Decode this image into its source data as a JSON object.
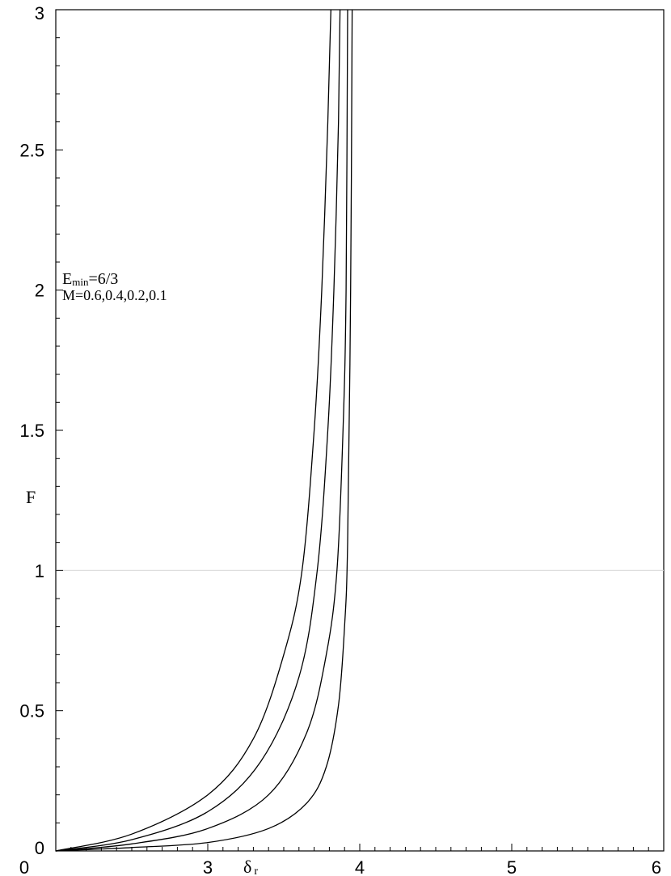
{
  "chart_data": {
    "type": "line",
    "xlabel": "δ",
    "xlabel_subscript": "r",
    "ylabel": "F",
    "xlim": [
      2,
      6
    ],
    "ylim": [
      0,
      3
    ],
    "x_ticks": [
      "3",
      "4",
      "5",
      "6"
    ],
    "y_ticks": [
      "0",
      "0.5",
      "1",
      "1.5",
      "2",
      "2.5",
      "3"
    ],
    "reference_line_y": 1,
    "annotation": {
      "line1_main": "E",
      "line1_sub": "min",
      "line1_rest": "=6/3",
      "line2": "M=0.6,0.4,0.2,0.1"
    },
    "series": [
      {
        "points": [
          [
            2.0,
            0
          ],
          [
            2.5,
            0.06
          ],
          [
            3.0,
            0.2
          ],
          [
            3.3,
            0.4
          ],
          [
            3.5,
            0.7
          ],
          [
            3.62,
            1.0
          ],
          [
            3.7,
            1.5
          ],
          [
            3.75,
            2.0
          ],
          [
            3.79,
            2.6
          ],
          [
            3.81,
            3.0
          ]
        ]
      },
      {
        "points": [
          [
            2.0,
            0
          ],
          [
            2.5,
            0.04
          ],
          [
            3.0,
            0.14
          ],
          [
            3.35,
            0.32
          ],
          [
            3.6,
            0.62
          ],
          [
            3.72,
            1.0
          ],
          [
            3.79,
            1.5
          ],
          [
            3.83,
            2.0
          ],
          [
            3.86,
            2.6
          ],
          [
            3.87,
            3.0
          ]
        ]
      },
      {
        "points": [
          [
            2.0,
            0
          ],
          [
            2.5,
            0.025
          ],
          [
            3.0,
            0.08
          ],
          [
            3.4,
            0.2
          ],
          [
            3.65,
            0.42
          ],
          [
            3.78,
            0.7
          ],
          [
            3.85,
            1.0
          ],
          [
            3.89,
            1.5
          ],
          [
            3.91,
            2.0
          ],
          [
            3.92,
            3.0
          ]
        ]
      },
      {
        "points": [
          [
            2.0,
            0
          ],
          [
            2.5,
            0.012
          ],
          [
            3.0,
            0.03
          ],
          [
            3.4,
            0.08
          ],
          [
            3.65,
            0.17
          ],
          [
            3.78,
            0.3
          ],
          [
            3.86,
            0.52
          ],
          [
            3.9,
            0.8
          ],
          [
            3.92,
            1.1
          ],
          [
            3.94,
            2.0
          ],
          [
            3.95,
            3.0
          ]
        ]
      }
    ]
  }
}
